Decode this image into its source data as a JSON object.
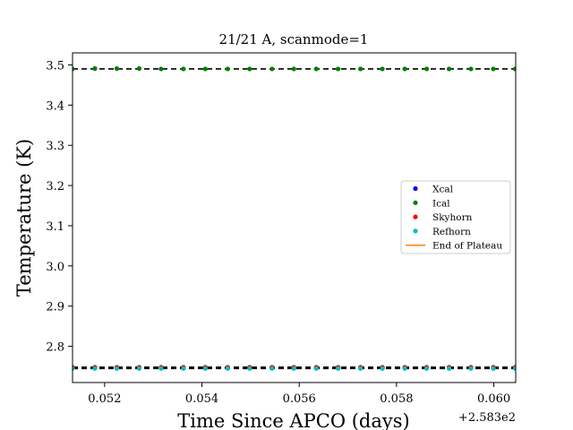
{
  "chart_data": {
    "type": "scatter",
    "title": "21/21 A, scanmode=1",
    "xlabel": "Time Since APCO (days)",
    "ylabel": "Temperature (K)",
    "x_offset_label": "+2.583e2",
    "xlim": [
      0.05134,
      0.06045
    ],
    "ylim": [
      2.71,
      3.53
    ],
    "xticks": [
      0.052,
      0.054,
      0.056,
      0.058,
      0.06
    ],
    "xtick_labels": [
      "0.052",
      "0.054",
      "0.056",
      "0.058",
      "0.060"
    ],
    "yticks": [
      2.8,
      2.9,
      3.0,
      3.1,
      3.2,
      3.3,
      3.4,
      3.5
    ],
    "ytick_labels": [
      "2.8",
      "2.9",
      "3.0",
      "3.1",
      "3.2",
      "3.3",
      "3.4",
      "3.5"
    ],
    "x": [
      0.05134,
      0.0518,
      0.05225,
      0.05271,
      0.05316,
      0.05362,
      0.05407,
      0.05453,
      0.05498,
      0.05544,
      0.05589,
      0.05635,
      0.0568,
      0.05726,
      0.05771,
      0.05817,
      0.05862,
      0.05908,
      0.05953,
      0.05999,
      0.06044
    ],
    "series": [
      {
        "name": "Xcal",
        "color": "#0000ff",
        "values": [
          2.746,
          2.746,
          2.746,
          2.746,
          2.746,
          2.746,
          2.746,
          2.746,
          2.746,
          2.746,
          2.746,
          2.746,
          2.746,
          2.746,
          2.746,
          2.746,
          2.746,
          2.746,
          2.746,
          2.746,
          2.746
        ]
      },
      {
        "name": "Ical",
        "color": "#008000",
        "values": [
          3.49,
          3.491,
          3.491,
          3.491,
          3.49,
          3.49,
          3.49,
          3.49,
          3.49,
          3.49,
          3.49,
          3.49,
          3.49,
          3.49,
          3.49,
          3.49,
          3.49,
          3.49,
          3.49,
          3.49,
          3.49
        ]
      },
      {
        "name": "Skyhorn",
        "color": "#ff0000",
        "values": [
          2.748,
          2.748,
          2.748,
          2.748,
          2.748,
          2.748,
          2.748,
          2.748,
          2.748,
          2.748,
          2.748,
          2.748,
          2.748,
          2.748,
          2.748,
          2.748,
          2.748,
          2.748,
          2.748,
          2.748,
          2.748
        ]
      },
      {
        "name": "Refhorn",
        "color": "#00bfbf",
        "values": [
          2.745,
          2.745,
          2.745,
          2.745,
          2.745,
          2.745,
          2.745,
          2.745,
          2.745,
          2.745,
          2.745,
          2.745,
          2.745,
          2.745,
          2.745,
          2.745,
          2.745,
          2.745,
          2.745,
          2.745,
          2.745
        ]
      }
    ],
    "reference_lines": [
      {
        "y": 3.49,
        "style": "dashed",
        "color": "#000000"
      },
      {
        "y": 2.748,
        "style": "dashed",
        "color": "#000000"
      },
      {
        "y": 2.745,
        "style": "dashed",
        "color": "#000000"
      }
    ],
    "legend": {
      "placement": "center-right",
      "entries": [
        {
          "label": "Xcal",
          "color": "#0000ff",
          "marker": "dot"
        },
        {
          "label": "Ical",
          "color": "#008000",
          "marker": "dot"
        },
        {
          "label": "Skyhorn",
          "color": "#ff0000",
          "marker": "dot"
        },
        {
          "label": "Refhorn",
          "color": "#00bfbf",
          "marker": "dot"
        },
        {
          "label": "End of Plateau",
          "color": "#ff7f0e",
          "marker": "line"
        }
      ]
    },
    "grid": false
  }
}
